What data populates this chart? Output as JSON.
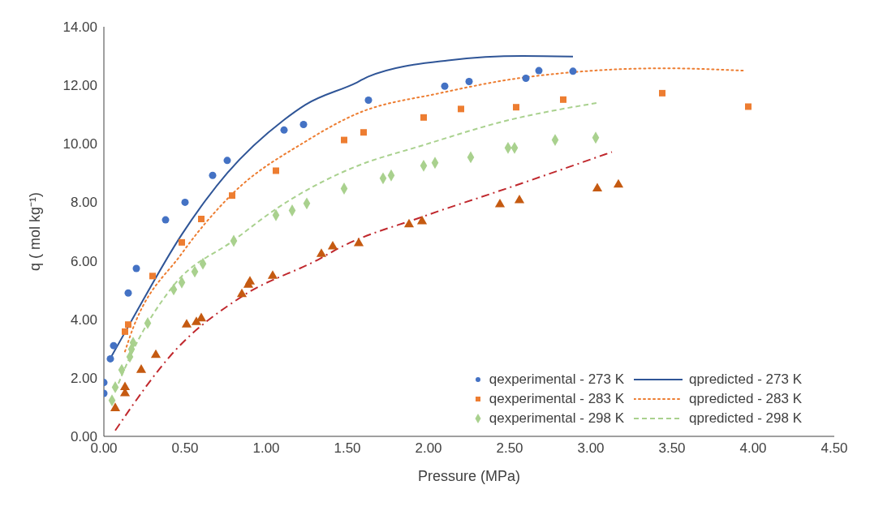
{
  "chart_data": {
    "type": "scatter",
    "xlabel": "Pressure (MPa)",
    "ylabel": "q ( mol kg⁻¹)",
    "xlim": [
      0,
      4.5
    ],
    "ylim": [
      0,
      14
    ],
    "xticks": [
      {
        "value": 0,
        "label": "0.00"
      },
      {
        "value": 0.5,
        "label": "0.50"
      },
      {
        "value": 1,
        "label": "1.00"
      },
      {
        "value": 1.5,
        "label": "1.50"
      },
      {
        "value": 2,
        "label": "2.00"
      },
      {
        "value": 2.5,
        "label": "2.50"
      },
      {
        "value": 3,
        "label": "3.00"
      },
      {
        "value": 3.5,
        "label": "3.50"
      },
      {
        "value": 4,
        "label": "4.00"
      },
      {
        "value": 4.5,
        "label": "4.50"
      }
    ],
    "yticks": [
      {
        "value": 0,
        "label": "0.00"
      },
      {
        "value": 2,
        "label": "2.00"
      },
      {
        "value": 4,
        "label": "4.00"
      },
      {
        "value": 6,
        "label": "6.00"
      },
      {
        "value": 8,
        "label": "8.00"
      },
      {
        "value": 10,
        "label": "10.00"
      },
      {
        "value": 12,
        "label": "12.00"
      },
      {
        "value": 14,
        "label": "14.00"
      }
    ],
    "grid": false,
    "legend": "bottom right",
    "series": [
      {
        "name": "qexperimental - 273 K",
        "marker": "circle",
        "color": "#4472c4",
        "x": [
          0,
          0,
          0.04,
          0.06,
          0.15,
          0.2,
          0.38,
          0.5,
          0.67,
          0.76,
          1.11,
          1.23,
          1.63,
          2.1,
          2.25,
          2.6,
          2.68,
          2.89
        ],
        "values": [
          1.47,
          1.84,
          2.65,
          3.1,
          4.9,
          5.74,
          7.4,
          8.0,
          8.92,
          9.43,
          10.47,
          10.66,
          11.49,
          11.97,
          12.13,
          12.24,
          12.5,
          12.48
        ]
      },
      {
        "name": "qpredicted - 273 K",
        "type": "line",
        "line_style": "solid",
        "color": "#2f5597",
        "x": [
          0.04,
          0.16,
          0.48,
          0.76,
          1.11,
          1.24,
          1.56,
          1.63,
          2.12,
          2.58,
          2.89
        ],
        "values": [
          2.67,
          3.85,
          6.9,
          9.0,
          10.82,
          11.33,
          12.1,
          12.3,
          12.85,
          13.0,
          12.98
        ]
      },
      {
        "name": "qexperimental - 283 K",
        "marker": "square",
        "color": "#ed7d31",
        "x": [
          0.13,
          0.15,
          0.3,
          0.48,
          0.6,
          0.79,
          1.06,
          1.48,
          1.6,
          1.97,
          2.2,
          2.54,
          2.83,
          3.44,
          3.97
        ],
        "values": [
          3.58,
          3.82,
          5.48,
          6.63,
          7.43,
          8.23,
          9.08,
          10.13,
          10.39,
          10.9,
          11.19,
          11.25,
          11.51,
          11.73,
          11.27
        ]
      },
      {
        "name": "qpredicted - 283 K",
        "type": "line",
        "line_style": "dotted",
        "color": "#ed7d31",
        "x": [
          0.13,
          0.16,
          0.48,
          0.79,
          1.24,
          1.56,
          2.07,
          2.58,
          3.45,
          3.95
        ],
        "values": [
          2.9,
          3.4,
          6.25,
          8.28,
          10.07,
          11.03,
          11.73,
          12.26,
          12.58,
          12.5
        ]
      },
      {
        "name": "qexperimental - 298 K",
        "marker": "diamond",
        "color": "#a9d18e",
        "x": [
          0.05,
          0.07,
          0.11,
          0.16,
          0.17,
          0.18,
          0.27,
          0.43,
          0.48,
          0.56,
          0.61,
          0.8,
          1.06,
          1.16,
          1.25,
          1.48,
          1.72,
          1.77,
          1.97,
          2.04,
          2.26,
          2.49,
          2.53,
          2.78,
          3.03
        ],
        "values": [
          1.23,
          1.68,
          2.27,
          2.72,
          2.98,
          3.2,
          3.87,
          5.02,
          5.26,
          5.63,
          5.9,
          6.68,
          7.56,
          7.72,
          7.96,
          8.47,
          8.82,
          8.92,
          9.25,
          9.35,
          9.54,
          9.86,
          9.86,
          10.13,
          10.21
        ]
      },
      {
        "name": "qpredicted - 298 K",
        "type": "line",
        "line_style": "dashed",
        "color": "#a9d18e",
        "x": [
          0.07,
          0.18,
          0.43,
          0.8,
          1.06,
          1.45,
          1.56,
          1.96,
          2.48,
          3.04
        ],
        "values": [
          1.55,
          2.94,
          5.16,
          6.7,
          7.77,
          8.98,
          9.24,
          9.94,
          10.79,
          11.4
        ]
      },
      {
        "marker": "triangle",
        "color": "#c55a11",
        "x": [
          0.07,
          0.13,
          0.13,
          0.23,
          0.32,
          0.51,
          0.57,
          0.6,
          0.85,
          0.89,
          0.9,
          1.04,
          1.34,
          1.41,
          1.57,
          1.88,
          1.96,
          2.44,
          2.56,
          3.04,
          3.17
        ],
        "values": [
          0.96,
          1.47,
          1.68,
          2.27,
          2.78,
          3.82,
          3.9,
          4.03,
          4.86,
          5.18,
          5.29,
          5.48,
          6.23,
          6.49,
          6.6,
          7.24,
          7.35,
          7.93,
          8.07,
          8.47,
          8.6
        ]
      },
      {
        "type": "line",
        "line_style": "dashdot",
        "color": "#c0282d",
        "x": [
          0.07,
          0.44,
          0.85,
          1.33,
          1.45,
          1.96,
          2.48,
          3.13
        ],
        "values": [
          0.2,
          2.94,
          4.78,
          6.07,
          6.44,
          7.5,
          8.47,
          9.72
        ]
      }
    ]
  }
}
